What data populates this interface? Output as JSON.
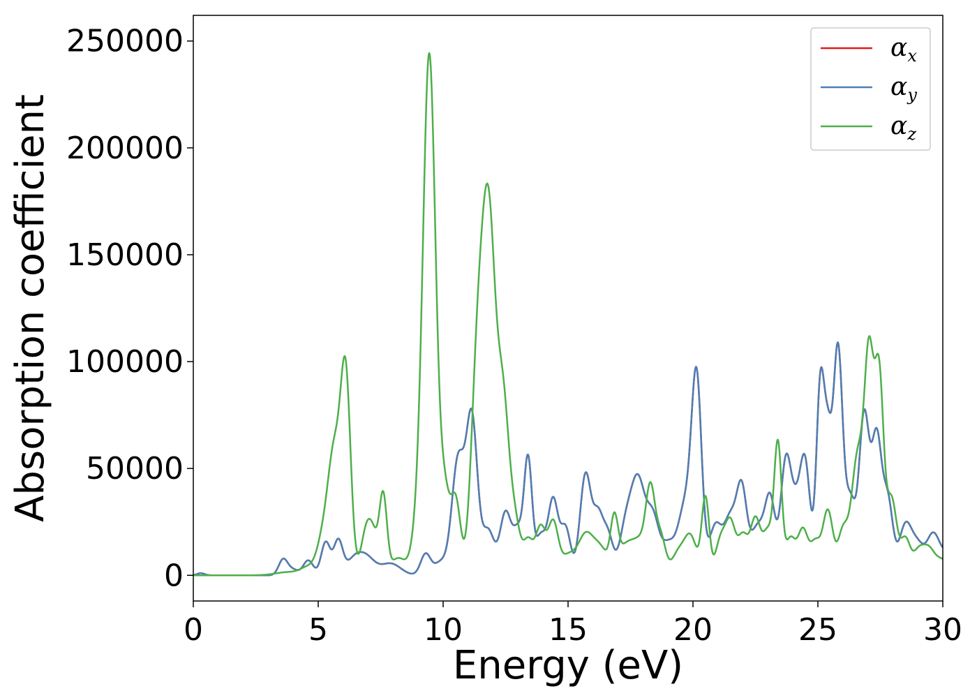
{
  "chart_data": {
    "type": "line",
    "xlabel": "Energy (eV)",
    "ylabel": "Absorption coefficient",
    "xlim": [
      0,
      30
    ],
    "ylim": [
      -12000,
      262000
    ],
    "xticks": [
      0,
      5,
      10,
      15,
      20,
      25,
      30
    ],
    "xtick_labels": [
      "0",
      "5",
      "10",
      "15",
      "20",
      "25",
      "30"
    ],
    "yticks": [
      0,
      50000,
      100000,
      150000,
      200000,
      250000
    ],
    "ytick_labels": [
      "0",
      "50000",
      "100000",
      "150000",
      "200000",
      "250000"
    ],
    "grid": false,
    "legend": "top-right",
    "series": [
      {
        "name": "α_x",
        "label_base": "α",
        "label_sub": "x",
        "color": "#e41a1c",
        "peaks": [
          [
            0.3,
            1000,
            0.15
          ],
          [
            3.6,
            7500,
            0.18
          ],
          [
            4.0,
            2500,
            0.2
          ],
          [
            4.6,
            7000,
            0.2
          ],
          [
            5.3,
            15500,
            0.18
          ],
          [
            5.8,
            16000,
            0.18
          ],
          [
            6.4,
            6000,
            0.3
          ],
          [
            6.9,
            8500,
            0.35
          ],
          [
            7.9,
            5500,
            0.4
          ],
          [
            9.3,
            10000,
            0.2
          ],
          [
            9.9,
            6000,
            0.25
          ],
          [
            10.6,
            54000,
            0.25
          ],
          [
            11.15,
            72000,
            0.22
          ],
          [
            11.8,
            21000,
            0.25
          ],
          [
            12.5,
            29000,
            0.22
          ],
          [
            13.0,
            20000,
            0.2
          ],
          [
            13.4,
            53000,
            0.16
          ],
          [
            13.9,
            18000,
            0.2
          ],
          [
            14.4,
            35000,
            0.2
          ],
          [
            14.9,
            22000,
            0.2
          ],
          [
            15.7,
            47000,
            0.22
          ],
          [
            16.2,
            26000,
            0.2
          ],
          [
            16.6,
            18000,
            0.2
          ],
          [
            17.3,
            21000,
            0.25
          ],
          [
            17.8,
            43000,
            0.28
          ],
          [
            18.4,
            26000,
            0.25
          ],
          [
            19.0,
            13000,
            0.25
          ],
          [
            19.7,
            33000,
            0.3
          ],
          [
            20.15,
            86000,
            0.2
          ],
          [
            20.9,
            23000,
            0.25
          ],
          [
            21.5,
            26000,
            0.25
          ],
          [
            21.95,
            37000,
            0.2
          ],
          [
            22.6,
            23000,
            0.3
          ],
          [
            23.1,
            32000,
            0.2
          ],
          [
            23.7,
            47000,
            0.2
          ],
          [
            24.1,
            30000,
            0.25
          ],
          [
            24.5,
            47000,
            0.2
          ],
          [
            25.1,
            88000,
            0.16
          ],
          [
            25.4,
            52000,
            0.15
          ],
          [
            25.8,
            106000,
            0.19
          ],
          [
            26.3,
            34000,
            0.2
          ],
          [
            26.85,
            74000,
            0.2
          ],
          [
            27.35,
            63000,
            0.2
          ],
          [
            27.8,
            34000,
            0.2
          ],
          [
            28.5,
            23000,
            0.25
          ],
          [
            29.0,
            13000,
            0.25
          ],
          [
            29.6,
            17000,
            0.25
          ],
          [
            30.3,
            11000,
            0.4
          ]
        ]
      },
      {
        "name": "α_y",
        "label_base": "α",
        "label_sub": "y",
        "color": "#4c7fb5",
        "peaks": [
          [
            0.3,
            1000,
            0.15
          ],
          [
            3.6,
            7500,
            0.18
          ],
          [
            4.0,
            2500,
            0.2
          ],
          [
            4.6,
            7000,
            0.2
          ],
          [
            5.3,
            15500,
            0.18
          ],
          [
            5.8,
            16000,
            0.18
          ],
          [
            6.4,
            6000,
            0.3
          ],
          [
            6.9,
            8500,
            0.35
          ],
          [
            7.9,
            5500,
            0.4
          ],
          [
            9.3,
            10000,
            0.2
          ],
          [
            9.9,
            6000,
            0.25
          ],
          [
            10.6,
            54000,
            0.25
          ],
          [
            11.15,
            72000,
            0.22
          ],
          [
            11.8,
            21000,
            0.25
          ],
          [
            12.5,
            29000,
            0.22
          ],
          [
            13.0,
            20000,
            0.2
          ],
          [
            13.4,
            53000,
            0.16
          ],
          [
            13.9,
            18000,
            0.2
          ],
          [
            14.4,
            35000,
            0.2
          ],
          [
            14.9,
            22000,
            0.2
          ],
          [
            15.7,
            47000,
            0.22
          ],
          [
            16.2,
            26000,
            0.2
          ],
          [
            16.6,
            18000,
            0.2
          ],
          [
            17.3,
            21000,
            0.25
          ],
          [
            17.8,
            43000,
            0.28
          ],
          [
            18.4,
            26000,
            0.25
          ],
          [
            19.0,
            13000,
            0.25
          ],
          [
            19.7,
            33000,
            0.3
          ],
          [
            20.15,
            86000,
            0.2
          ],
          [
            20.9,
            23000,
            0.25
          ],
          [
            21.5,
            26000,
            0.25
          ],
          [
            21.95,
            37000,
            0.2
          ],
          [
            22.6,
            23000,
            0.3
          ],
          [
            23.1,
            32000,
            0.2
          ],
          [
            23.7,
            47000,
            0.2
          ],
          [
            24.1,
            30000,
            0.25
          ],
          [
            24.5,
            47000,
            0.2
          ],
          [
            25.1,
            88000,
            0.16
          ],
          [
            25.4,
            52000,
            0.15
          ],
          [
            25.8,
            106000,
            0.19
          ],
          [
            26.3,
            34000,
            0.2
          ],
          [
            26.85,
            74000,
            0.2
          ],
          [
            27.35,
            63000,
            0.2
          ],
          [
            27.8,
            34000,
            0.2
          ],
          [
            28.5,
            23000,
            0.25
          ],
          [
            29.0,
            13000,
            0.25
          ],
          [
            29.6,
            17000,
            0.25
          ],
          [
            30.3,
            11000,
            0.4
          ]
        ]
      },
      {
        "name": "α_z",
        "label_base": "α",
        "label_sub": "z",
        "color": "#4daf4a",
        "peaks": [
          [
            3.8,
            1500,
            0.5
          ],
          [
            4.6,
            3500,
            0.3
          ],
          [
            5.2,
            16000,
            0.25
          ],
          [
            5.65,
            55000,
            0.25
          ],
          [
            6.1,
            90000,
            0.2
          ],
          [
            6.9,
            18000,
            0.2
          ],
          [
            7.2,
            17000,
            0.2
          ],
          [
            7.6,
            36000,
            0.15
          ],
          [
            8.2,
            8000,
            0.3
          ],
          [
            9.0,
            20000,
            0.25
          ],
          [
            9.45,
            240000,
            0.25
          ],
          [
            10.05,
            35000,
            0.2
          ],
          [
            10.5,
            35000,
            0.2
          ],
          [
            11.2,
            20000,
            0.2
          ],
          [
            11.45,
            95000,
            0.25
          ],
          [
            11.85,
            145000,
            0.25
          ],
          [
            12.4,
            80000,
            0.25
          ],
          [
            12.9,
            20000,
            0.2
          ],
          [
            13.4,
            16000,
            0.2
          ],
          [
            13.9,
            22000,
            0.2
          ],
          [
            14.4,
            24000,
            0.2
          ],
          [
            15.0,
            9000,
            0.3
          ],
          [
            15.7,
            18000,
            0.3
          ],
          [
            16.3,
            12000,
            0.3
          ],
          [
            16.85,
            23000,
            0.15
          ],
          [
            17.3,
            13000,
            0.3
          ],
          [
            17.9,
            15000,
            0.3
          ],
          [
            18.3,
            35000,
            0.18
          ],
          [
            18.7,
            18000,
            0.2
          ],
          [
            19.4,
            10000,
            0.25
          ],
          [
            19.9,
            18000,
            0.25
          ],
          [
            20.5,
            36000,
            0.15
          ],
          [
            21.1,
            16000,
            0.2
          ],
          [
            21.5,
            24000,
            0.2
          ],
          [
            22.0,
            18000,
            0.2
          ],
          [
            22.5,
            26000,
            0.2
          ],
          [
            23.0,
            20000,
            0.2
          ],
          [
            23.4,
            60000,
            0.15
          ],
          [
            23.9,
            17000,
            0.2
          ],
          [
            24.4,
            21000,
            0.2
          ],
          [
            24.9,
            15000,
            0.2
          ],
          [
            25.4,
            30000,
            0.2
          ],
          [
            26.0,
            20000,
            0.2
          ],
          [
            26.6,
            56000,
            0.25
          ],
          [
            27.05,
            93000,
            0.18
          ],
          [
            27.45,
            92000,
            0.18
          ],
          [
            27.95,
            35000,
            0.2
          ],
          [
            28.5,
            17000,
            0.2
          ],
          [
            29.0,
            9000,
            0.2
          ],
          [
            29.4,
            12000,
            0.25
          ],
          [
            30.0,
            7000,
            0.3
          ]
        ]
      }
    ]
  }
}
